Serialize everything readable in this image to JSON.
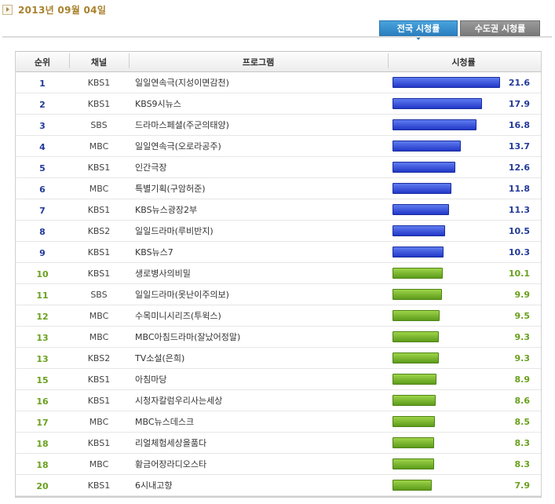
{
  "date": "2013년 09월 04일",
  "tabs": {
    "national": "전국 시청률",
    "capital": "수도권 시청률"
  },
  "headers": {
    "rank": "순위",
    "channel": "채널",
    "program": "프로그램",
    "rating": "시청률"
  },
  "colors": {
    "top_bar": "#2a40d0",
    "rest_bar": "#6aa625",
    "rank_blue": "#233a9a",
    "rank_green": "#6aa01e"
  },
  "chart_data": {
    "type": "bar",
    "orientation": "horizontal",
    "xlim": [
      0,
      23
    ],
    "rows": [
      {
        "rank": "1",
        "channel": "KBS1",
        "program": "일일연속극(지성이면감천)",
        "value": 21.6
      },
      {
        "rank": "2",
        "channel": "KBS1",
        "program": "KBS9시뉴스",
        "value": 17.9
      },
      {
        "rank": "3",
        "channel": "SBS",
        "program": "드라마스페셜(주군의태양)",
        "value": 16.8
      },
      {
        "rank": "4",
        "channel": "MBC",
        "program": "일일연속극(오로라공주)",
        "value": 13.7
      },
      {
        "rank": "5",
        "channel": "KBS1",
        "program": "인간극장",
        "value": 12.6
      },
      {
        "rank": "6",
        "channel": "MBC",
        "program": "특별기획(구암허준)",
        "value": 11.8
      },
      {
        "rank": "7",
        "channel": "KBS1",
        "program": "KBS뉴스광장2부",
        "value": 11.3
      },
      {
        "rank": "8",
        "channel": "KBS2",
        "program": "일일드라마(루비반지)",
        "value": 10.5
      },
      {
        "rank": "9",
        "channel": "KBS1",
        "program": "KBS뉴스7",
        "value": 10.3
      },
      {
        "rank": "10",
        "channel": "KBS1",
        "program": "생로병사의비밀",
        "value": 10.1
      },
      {
        "rank": "11",
        "channel": "SBS",
        "program": "일일드라마(못난이주의보)",
        "value": 9.9
      },
      {
        "rank": "12",
        "channel": "MBC",
        "program": "수목미니시리즈(투윅스)",
        "value": 9.5
      },
      {
        "rank": "13",
        "channel": "MBC",
        "program": "MBC아침드라마(잘났어정말)",
        "value": 9.3
      },
      {
        "rank": "13",
        "channel": "KBS2",
        "program": "TV소설(은희)",
        "value": 9.3
      },
      {
        "rank": "15",
        "channel": "KBS1",
        "program": "아침마당",
        "value": 8.9
      },
      {
        "rank": "16",
        "channel": "KBS1",
        "program": "시청자칼럼우리사는세상",
        "value": 8.6
      },
      {
        "rank": "17",
        "channel": "MBC",
        "program": "MBC뉴스데스크",
        "value": 8.5
      },
      {
        "rank": "18",
        "channel": "KBS1",
        "program": "리얼체험세상을품다",
        "value": 8.3
      },
      {
        "rank": "18",
        "channel": "MBC",
        "program": "황금어장라디오스타",
        "value": 8.3
      },
      {
        "rank": "20",
        "channel": "KBS1",
        "program": "6시내고향",
        "value": 7.9
      }
    ]
  }
}
